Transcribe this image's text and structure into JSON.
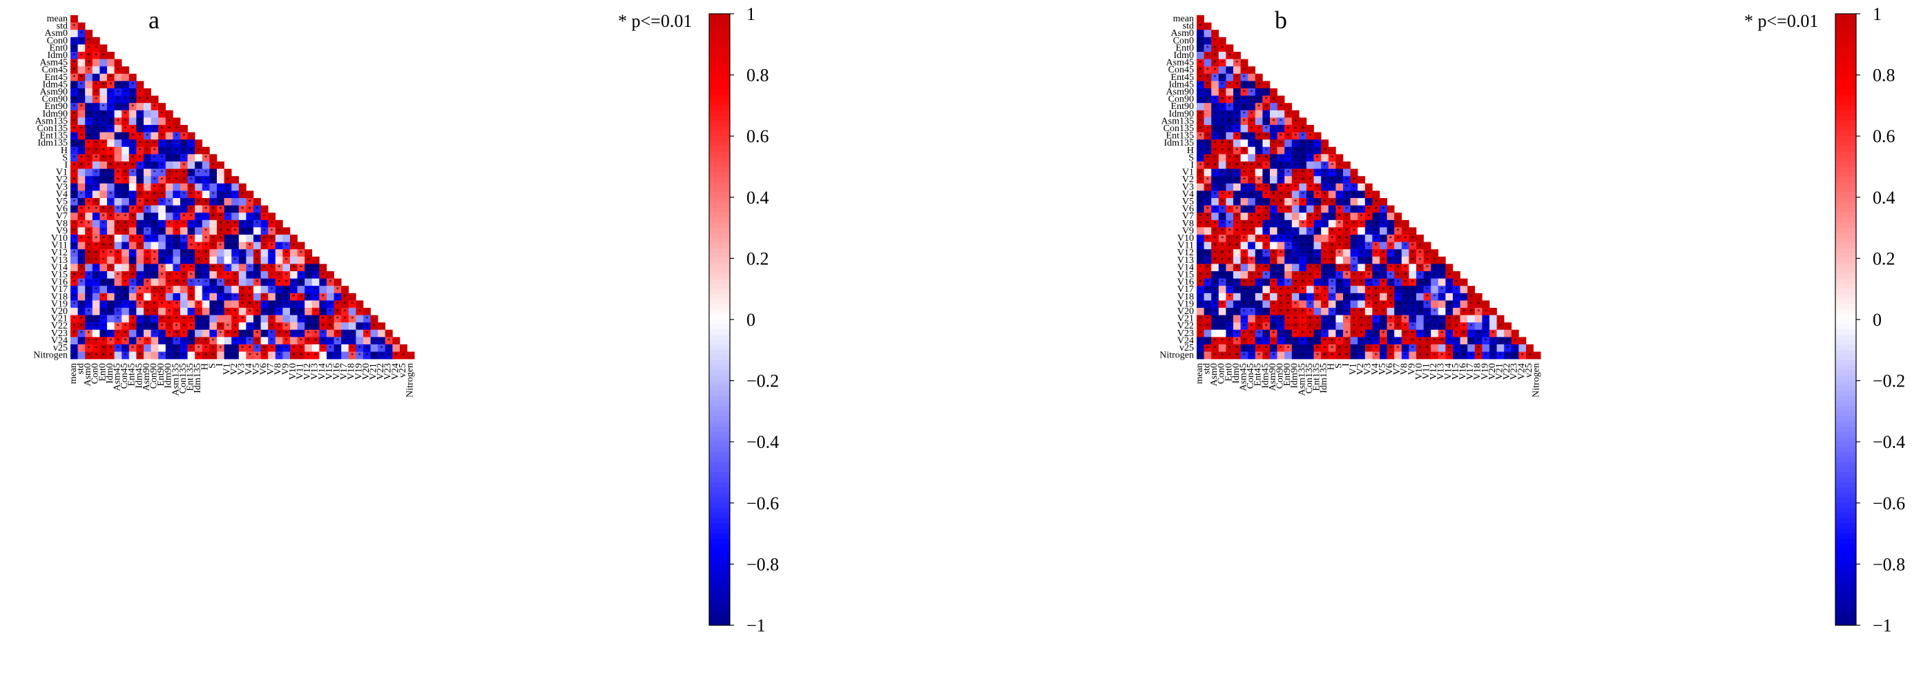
{
  "colors": {
    "negative": "#00008B",
    "mid_negative": "#0000FF",
    "neutral": "#FFFFFF",
    "mid_positive": "#FF0000",
    "positive": "#C80000",
    "axis": "#000000",
    "marker": "#000000"
  },
  "variables": [
    "mean",
    "std",
    "Asm0",
    "Con0",
    "Ent0",
    "Idm0",
    "Asm45",
    "Con45",
    "Ent45",
    "Idm45",
    "Asm90",
    "Con90",
    "Ent90",
    "Idm90",
    "Asm135",
    "Con135",
    "Ent135",
    "Idm135",
    "H",
    "S",
    "I",
    "V1",
    "V2",
    "V3",
    "V4",
    "V5",
    "V6",
    "V7",
    "V8",
    "V9",
    "V10",
    "V11",
    "V12",
    "V13",
    "V14",
    "V15",
    "V16",
    "V17",
    "V18",
    "V19",
    "V20",
    "V21",
    "V22",
    "V23",
    "V24",
    "v25",
    "Nitrogen"
  ],
  "significance_note": "* p<=0.01",
  "colorbar": {
    "ticks": [
      "1",
      "0.8",
      "0.6",
      "0.4",
      "0.2",
      "0",
      "−0.2",
      "−0.4",
      "−0.6",
      "−0.8",
      "−1"
    ],
    "range": [
      -1,
      1
    ]
  },
  "chart_data": [
    {
      "type": "heatmap",
      "panel_label": "a",
      "title": "",
      "xlabel": "",
      "ylabel": "",
      "layout": "lower-triangular correlation matrix",
      "value_range": [
        -1,
        1
      ],
      "row_groups": {
        "texture": [
          0,
          17
        ],
        "color": [
          18,
          23
        ],
        "vegetation_index": [
          24,
          45
        ],
        "target": [
          46,
          46
        ]
      },
      "diagonal_value": 1
    },
    {
      "type": "heatmap",
      "panel_label": "b",
      "title": "",
      "xlabel": "",
      "ylabel": "",
      "layout": "lower-triangular correlation matrix",
      "value_range": [
        -1,
        1
      ],
      "row_groups": {
        "texture": [
          0,
          17
        ],
        "color": [
          18,
          23
        ],
        "vegetation_index": [
          24,
          45
        ],
        "target": [
          46,
          46
        ]
      },
      "diagonal_value": 1
    }
  ]
}
